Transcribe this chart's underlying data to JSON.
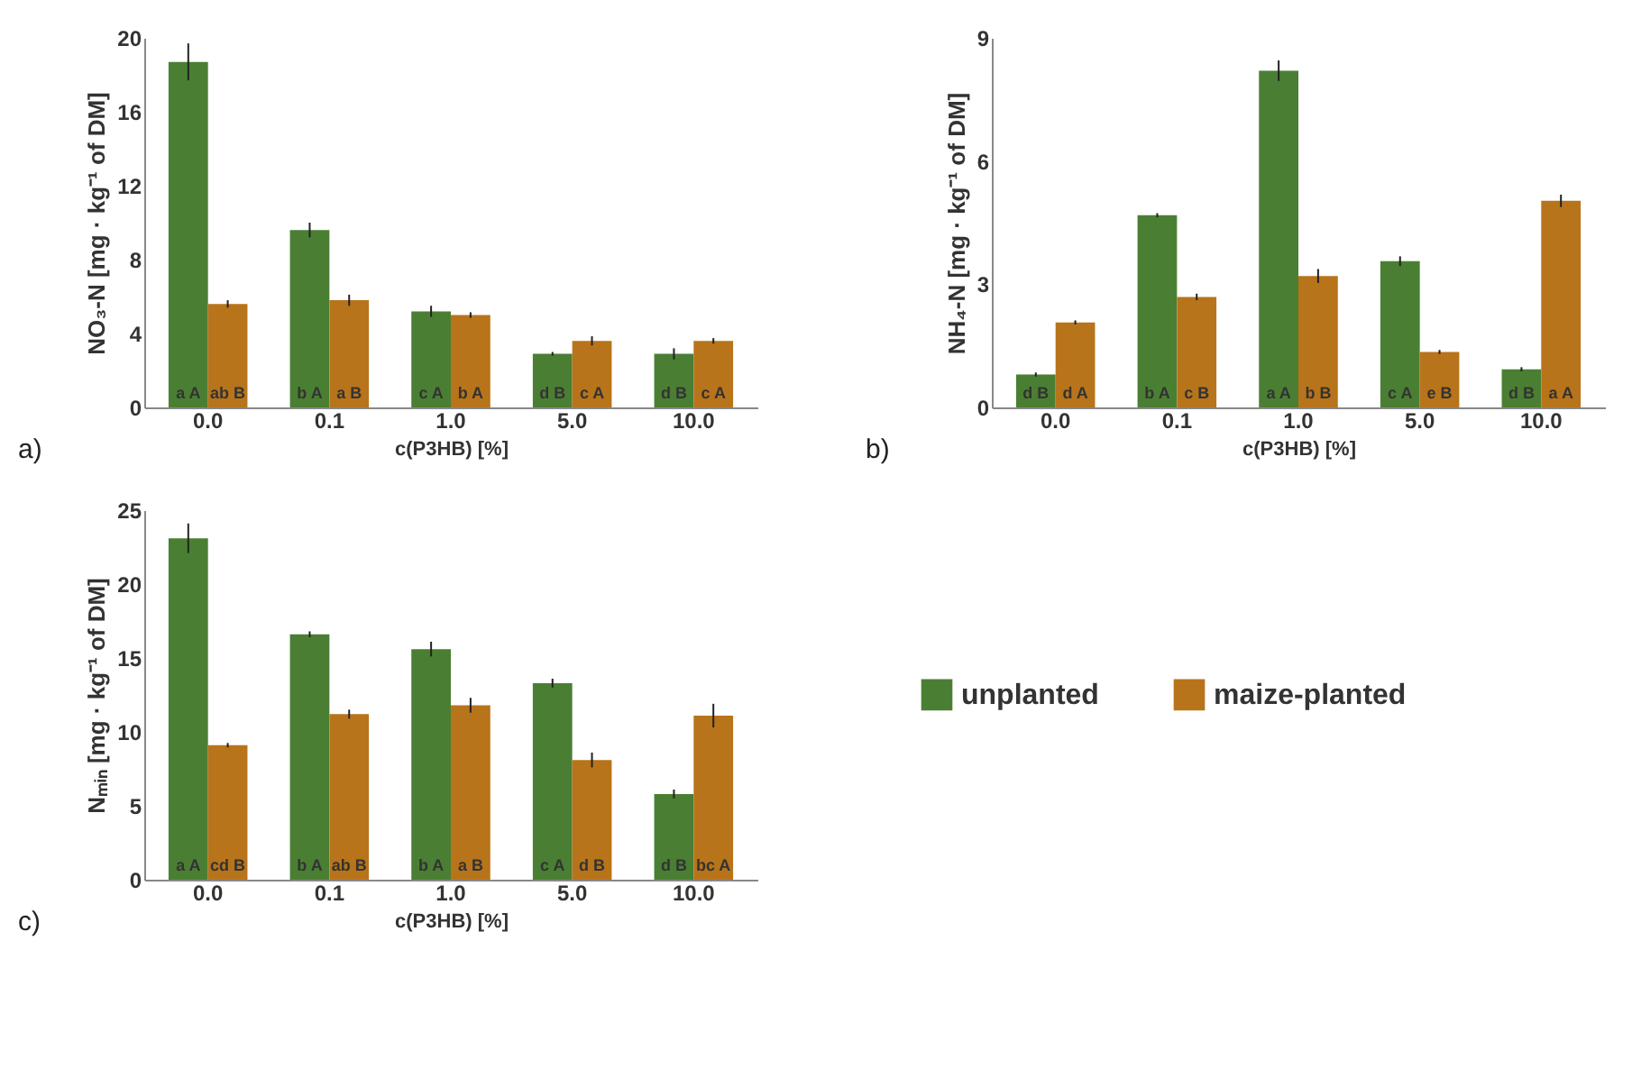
{
  "chart_data": [
    {
      "type": "bar",
      "categories": [
        "0.0",
        "0.1",
        "1.0",
        "5.0",
        "10.0"
      ],
      "xlabel": "c(P3HB) [%]",
      "ylabel": "NO₃-N [mg · kg⁻¹ of DM]",
      "ylim": [
        0,
        20
      ],
      "yticks": [
        0,
        4,
        8,
        12,
        16,
        20
      ],
      "annotations": [
        "a)"
      ],
      "series": [
        {
          "color": "#4a7f33",
          "values": [
            18.7,
            9.6,
            5.2,
            2.9,
            2.9
          ],
          "errors": [
            1.0,
            0.4,
            0.3,
            0.1,
            0.3
          ],
          "value_labels": [
            "a A",
            "b A",
            "c A",
            "d B",
            "d B"
          ]
        },
        {
          "color": "#b8741a",
          "values": [
            5.6,
            5.8,
            5.0,
            3.6,
            3.6
          ],
          "errors": [
            0.2,
            0.3,
            0.15,
            0.25,
            0.15
          ],
          "value_labels": [
            "ab B",
            "a B",
            "b A",
            "c A",
            "c A"
          ]
        }
      ]
    },
    {
      "type": "bar",
      "categories": [
        "0.0",
        "0.1",
        "1.0",
        "5.0",
        "10.0"
      ],
      "xlabel": "c(P3HB) [%]",
      "ylabel": "NH₄-N [mg · kg⁻¹ of DM]",
      "ylim": [
        0,
        9
      ],
      "yticks": [
        0,
        3,
        6,
        9
      ],
      "annotations": [
        "b)"
      ],
      "series": [
        {
          "color": "#4a7f33",
          "values": [
            0.8,
            4.68,
            8.2,
            3.56,
            0.93
          ],
          "errors": [
            0.05,
            0.05,
            0.25,
            0.12,
            0.05
          ],
          "value_labels": [
            "d B",
            "b A",
            "a A",
            "c A",
            "d B"
          ]
        },
        {
          "color": "#b8741a",
          "values": [
            2.07,
            2.69,
            3.2,
            1.35,
            5.03
          ],
          "errors": [
            0.05,
            0.08,
            0.17,
            0.05,
            0.15
          ],
          "value_labels": [
            "d A",
            "c B",
            "b B",
            "e B",
            "a A"
          ]
        }
      ]
    },
    {
      "type": "bar",
      "categories": [
        "0.0",
        "0.1",
        "1.0",
        "5.0",
        "10.0"
      ],
      "xlabel": "c(P3HB) [%]",
      "ylabel": "Nₘᵢₙ [mg · kg⁻¹ of DM]",
      "ylim": [
        0,
        25
      ],
      "yticks": [
        0,
        5,
        10,
        15,
        20,
        25
      ],
      "annotations": [
        "c)"
      ],
      "legend": "right",
      "series": [
        {
          "name": "unplanted",
          "color": "#4a7f33",
          "values": [
            23.1,
            16.6,
            15.6,
            13.3,
            5.8
          ],
          "errors": [
            1.0,
            0.2,
            0.5,
            0.3,
            0.3
          ],
          "value_labels": [
            "a A",
            "b A",
            "b A",
            "c A",
            "d B"
          ]
        },
        {
          "name": "maize-planted",
          "color": "#b8741a",
          "values": [
            9.1,
            11.2,
            11.8,
            8.1,
            11.1
          ],
          "errors": [
            0.15,
            0.3,
            0.5,
            0.5,
            0.8
          ],
          "value_labels": [
            "cd B",
            "ab B",
            "a B",
            "d B",
            "bc A"
          ]
        }
      ]
    }
  ]
}
